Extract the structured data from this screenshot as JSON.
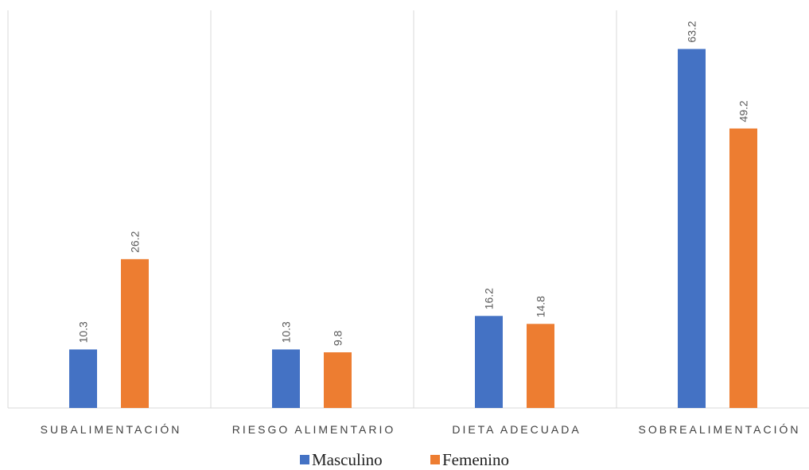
{
  "chart_data": {
    "type": "bar",
    "categories": [
      "SUBALIMENTACIÓN",
      "RIESGO ALIMENTARIO",
      "DIETA ADECUADA",
      "SOBREALIMENTACIÓN"
    ],
    "series": [
      {
        "name": "Masculino",
        "color": "#4472c4",
        "values": [
          10.3,
          10.3,
          16.2,
          63.2
        ]
      },
      {
        "name": "Femenino",
        "color": "#ed7d31",
        "values": [
          26.2,
          9.8,
          14.8,
          49.2
        ]
      }
    ],
    "ylim": [
      0,
      70
    ],
    "legend": "bottom"
  }
}
